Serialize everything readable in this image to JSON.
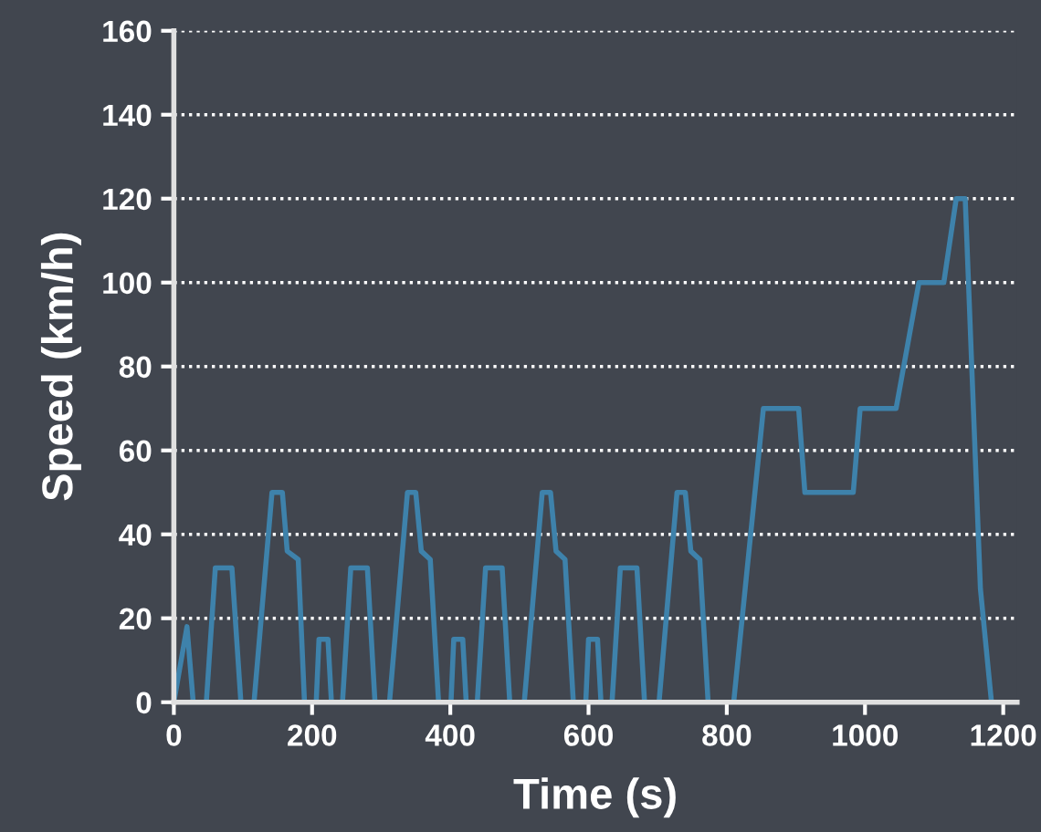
{
  "chart_data": {
    "type": "line",
    "xlabel": "Time (s)",
    "ylabel": "Speed (km/h)",
    "x": [
      0,
      19,
      28,
      47,
      60,
      84,
      97,
      116,
      142,
      157,
      164,
      180,
      189,
      206,
      210,
      223,
      228,
      244,
      256,
      280,
      291,
      312,
      338,
      350,
      358,
      371,
      383,
      401,
      405,
      418,
      423,
      439,
      451,
      475,
      486,
      507,
      533,
      545,
      553,
      566,
      578,
      596,
      600,
      613,
      618,
      634,
      646,
      670,
      681,
      702,
      728,
      740,
      748,
      761,
      773,
      788,
      810,
      853,
      904,
      913,
      983,
      993,
      1045,
      1078,
      1114,
      1132,
      1145,
      1167,
      1183
    ],
    "series": [
      {
        "color": "#3e82ab",
        "values": [
          0,
          18,
          0,
          0,
          32,
          32,
          0,
          0,
          50,
          50,
          36,
          34,
          0,
          0,
          15,
          15,
          0,
          0,
          32,
          32,
          0,
          0,
          50,
          50,
          36,
          34,
          0,
          0,
          15,
          15,
          0,
          0,
          32,
          32,
          0,
          0,
          50,
          50,
          36,
          34,
          0,
          0,
          15,
          15,
          0,
          0,
          32,
          32,
          0,
          0,
          50,
          50,
          36,
          34,
          0,
          0,
          0,
          70,
          70,
          50,
          50,
          70,
          70,
          100,
          100,
          120,
          120,
          27,
          0
        ]
      }
    ],
    "xlim": [
      0,
      1220
    ],
    "ylim": [
      0,
      160
    ],
    "xticks": [
      0,
      200,
      400,
      600,
      800,
      1000,
      1200
    ],
    "yticks": [
      0,
      20,
      40,
      60,
      80,
      100,
      120,
      140,
      160
    ],
    "grid": "y",
    "line_style": "solid"
  }
}
